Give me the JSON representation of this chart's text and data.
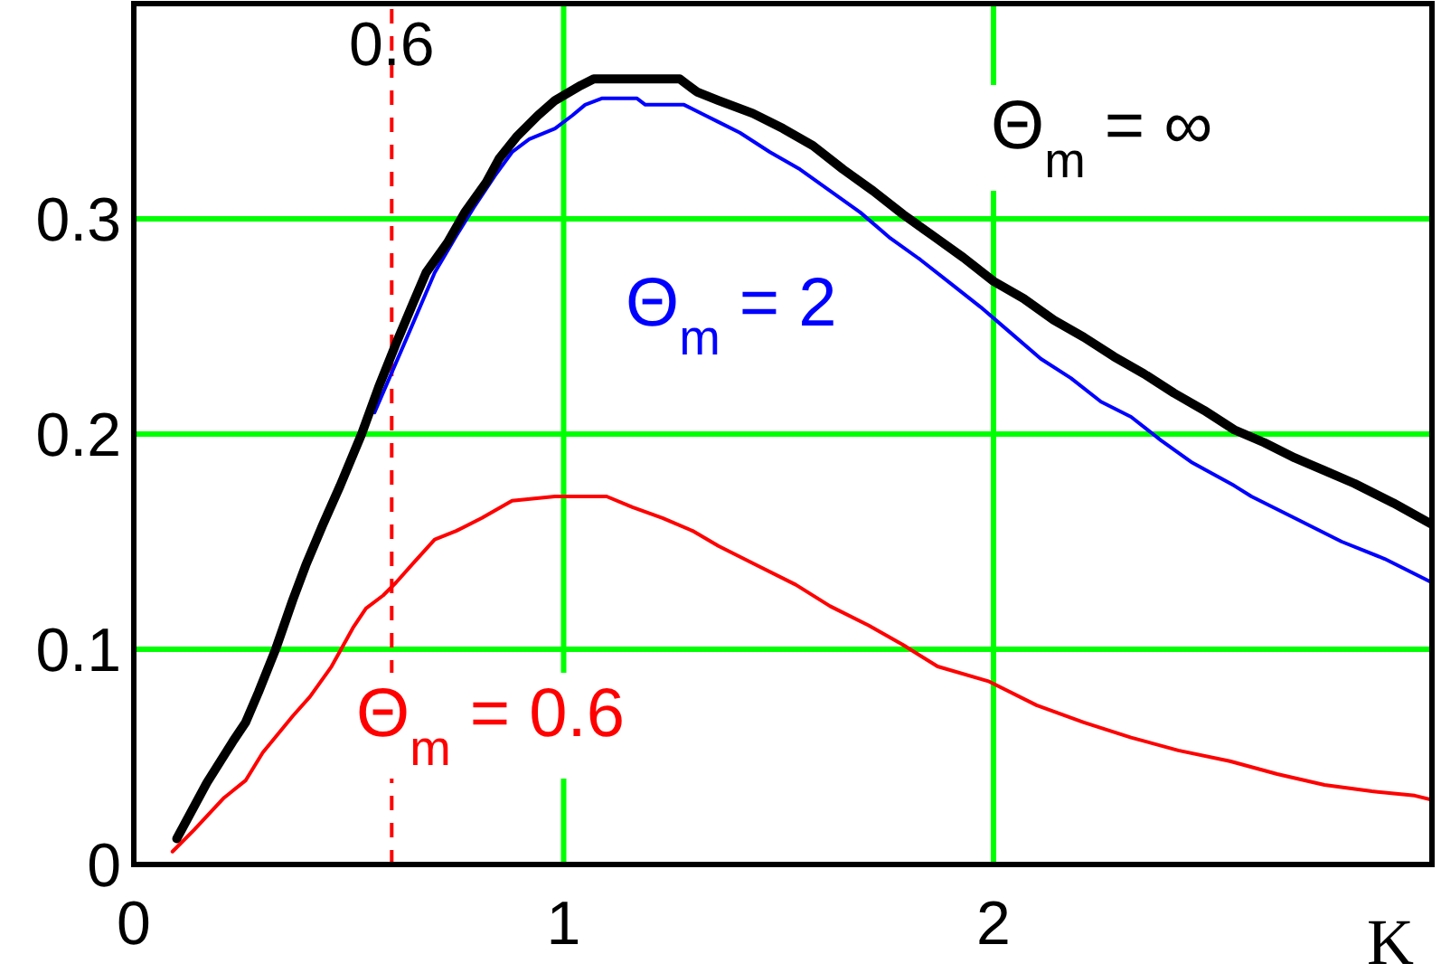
{
  "chart_data": {
    "type": "line",
    "xlabel": "K",
    "xlim": [
      0,
      3.02
    ],
    "xticks": [
      0,
      1,
      2
    ],
    "ylim": [
      0,
      0.4
    ],
    "yticks": [
      0,
      0.1,
      0.2,
      0.3
    ],
    "grid": true,
    "ref_lines": [
      {
        "axis": "x",
        "value": 0.6,
        "label": "0.6",
        "color": "#ff0000",
        "line_style": "dashed"
      }
    ],
    "series": [
      {
        "name": "Θ$_{m}$ = ∞",
        "color": "#000000",
        "x": [
          0.1,
          0.17,
          0.23,
          0.26,
          0.29,
          0.33,
          0.37,
          0.4,
          0.44,
          0.48,
          0.53,
          0.57,
          0.61,
          0.65,
          0.68,
          0.73,
          0.77,
          0.82,
          0.85,
          0.89,
          0.94,
          0.98,
          1.04,
          1.07,
          1.27,
          1.31,
          1.36,
          1.44,
          1.51,
          1.58,
          1.65,
          1.72,
          1.79,
          1.86,
          1.93,
          2,
          2.07,
          2.14,
          2.21,
          2.28,
          2.35,
          2.42,
          2.49,
          2.56,
          2.63,
          2.7,
          2.77,
          2.84,
          2.93,
          3.02
        ],
        "values": [
          0.012,
          0.038,
          0.057,
          0.066,
          0.08,
          0.1,
          0.123,
          0.139,
          0.158,
          0.176,
          0.2,
          0.222,
          0.242,
          0.261,
          0.275,
          0.289,
          0.303,
          0.317,
          0.328,
          0.338,
          0.348,
          0.355,
          0.362,
          0.365,
          0.365,
          0.359,
          0.355,
          0.349,
          0.342,
          0.334,
          0.323,
          0.313,
          0.302,
          0.292,
          0.282,
          0.271,
          0.263,
          0.253,
          0.245,
          0.236,
          0.228,
          0.219,
          0.211,
          0.202,
          0.196,
          0.189,
          0.183,
          0.177,
          0.168,
          0.158
        ]
      },
      {
        "name": "Θ$_{m}$ = 2",
        "color": "#0000ff",
        "x": [
          0.56,
          0.64,
          0.7,
          0.75,
          0.79,
          0.84,
          0.88,
          0.92,
          0.98,
          1.02,
          1.05,
          1.09,
          1.17,
          1.19,
          1.28,
          1.33,
          1.36,
          1.41,
          1.48,
          1.55,
          1.62,
          1.69,
          1.76,
          1.83,
          1.9,
          1.97,
          2.04,
          2.11,
          2.18,
          2.25,
          2.32,
          2.39,
          2.46,
          2.56,
          2.6,
          2.7,
          2.81,
          2.91,
          3.02
        ],
        "values": [
          0.21,
          0.247,
          0.275,
          0.292,
          0.305,
          0.32,
          0.331,
          0.337,
          0.342,
          0.348,
          0.353,
          0.356,
          0.356,
          0.353,
          0.353,
          0.348,
          0.345,
          0.34,
          0.331,
          0.323,
          0.313,
          0.303,
          0.291,
          0.281,
          0.27,
          0.259,
          0.247,
          0.235,
          0.226,
          0.215,
          0.208,
          0.197,
          0.187,
          0.176,
          0.171,
          0.161,
          0.15,
          0.142,
          0.131
        ]
      },
      {
        "name": "Θ$_{m}$ = 0.6",
        "color": "#ff0000",
        "x": [
          0.09,
          0.14,
          0.21,
          0.26,
          0.3,
          0.37,
          0.41,
          0.46,
          0.51,
          0.54,
          0.58,
          0.61,
          0.65,
          0.7,
          0.75,
          0.81,
          0.88,
          0.98,
          1.1,
          1.16,
          1.23,
          1.3,
          1.36,
          1.45,
          1.54,
          1.62,
          1.71,
          1.79,
          1.87,
          1.99,
          2.1,
          2.21,
          2.32,
          2.43,
          2.55,
          2.66,
          2.77,
          2.88,
          2.98,
          3.02
        ],
        "values": [
          0.006,
          0.016,
          0.031,
          0.039,
          0.052,
          0.069,
          0.078,
          0.092,
          0.11,
          0.119,
          0.125,
          0.131,
          0.14,
          0.151,
          0.155,
          0.161,
          0.169,
          0.171,
          0.171,
          0.166,
          0.161,
          0.155,
          0.148,
          0.139,
          0.13,
          0.12,
          0.111,
          0.102,
          0.092,
          0.085,
          0.074,
          0.066,
          0.059,
          0.053,
          0.048,
          0.042,
          0.037,
          0.034,
          0.032,
          0.03
        ]
      }
    ]
  }
}
